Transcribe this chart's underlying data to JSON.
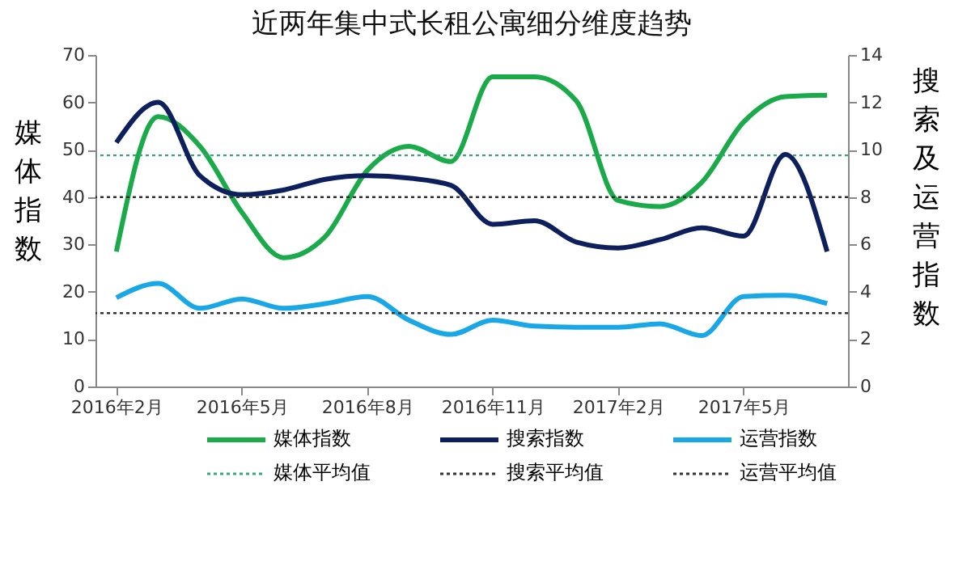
{
  "chart_data": {
    "type": "line",
    "title": "近两年集中式长租公寓细分维度趋势",
    "ylabel": "媒体指数",
    "y2label": "搜索及运营指数",
    "categories": [
      "2016年2月",
      null,
      null,
      "2016年5月",
      null,
      null,
      "2016年8月",
      null,
      null,
      "2016年11月",
      null,
      null,
      "2017年2月",
      null,
      null,
      "2017年5月",
      null,
      null
    ],
    "series": [
      {
        "name": "媒体指数",
        "color": "#1aaa4a",
        "values": [
          28.5,
          57,
          50.7,
          36.8,
          27.2,
          31.7,
          45.6,
          50.7,
          47.5,
          65.4,
          65.4,
          60.3,
          39.3,
          38,
          43.1,
          55.8,
          61.2,
          61.5
        ]
      },
      {
        "name": "搜索指数",
        "color": "#0d1f5c",
        "axis": "y2",
        "values": [
          10.3,
          12,
          8.9,
          8.1,
          8.3,
          8.75,
          8.9,
          8.8,
          8.5,
          6.85,
          7,
          6.1,
          5.85,
          6.2,
          6.7,
          6.35,
          9.8,
          5.7
        ]
      },
      {
        "name": "运营指数",
        "color": "#1aa7e6",
        "axis": "y2",
        "values": [
          3.75,
          4.35,
          3.3,
          3.7,
          3.3,
          3.5,
          3.8,
          2.8,
          2.2,
          2.8,
          2.55,
          2.5,
          2.5,
          2.65,
          2.15,
          3.8,
          3.85,
          3.5
        ]
      }
    ],
    "ref_lines": [
      {
        "axis": "y",
        "value": 48.8,
        "label": "媒体平均值",
        "color": "#3aa57a",
        "line_style": "dotted"
      },
      {
        "axis": "y2",
        "value": 8,
        "label": "搜索平均值",
        "color": "#333333",
        "line_style": "dotted"
      },
      {
        "axis": "y2",
        "value": 3.1,
        "label": "运营平均值",
        "color": "#333333",
        "line_style": "dotted"
      }
    ],
    "ylim": [
      0,
      70
    ],
    "yticks": [
      0,
      10,
      20,
      30,
      40,
      50,
      60,
      70
    ],
    "y2lim": [
      0,
      14
    ],
    "y2ticks": [
      0,
      2,
      4,
      6,
      8,
      10,
      12,
      14
    ],
    "grid": false,
    "legend": "bottom",
    "line_style": "solid",
    "marker": "none"
  }
}
